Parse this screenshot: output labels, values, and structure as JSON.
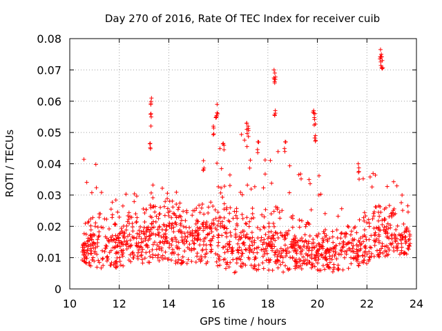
{
  "chart_data": {
    "type": "scatter",
    "title": "Day 270 of 2016, Rate Of TEC Index for receiver cuib",
    "xlabel": "GPS time / hours",
    "ylabel": "ROTI / TECUs",
    "xlim": [
      10,
      24
    ],
    "ylim": [
      0,
      0.08
    ],
    "grid": true,
    "marker": "+",
    "color": "#ff0000",
    "x_ticks": [
      "10",
      "12",
      "14",
      "16",
      "18",
      "20",
      "22",
      "24"
    ],
    "y_ticks": [
      "0",
      "0.01",
      "0.02",
      "0.03",
      "0.04",
      "0.05",
      "0.06",
      "0.07",
      "0.08"
    ],
    "envelope": [
      {
        "x": 10.5,
        "low": 0.008,
        "mid": 0.014,
        "high": 0.043
      },
      {
        "x": 11.0,
        "low": 0.007,
        "mid": 0.016,
        "high": 0.042
      },
      {
        "x": 11.5,
        "low": 0.006,
        "mid": 0.015,
        "high": 0.027
      },
      {
        "x": 12.0,
        "low": 0.007,
        "mid": 0.016,
        "high": 0.031
      },
      {
        "x": 12.5,
        "low": 0.008,
        "mid": 0.016,
        "high": 0.032
      },
      {
        "x": 13.0,
        "low": 0.008,
        "mid": 0.017,
        "high": 0.032
      },
      {
        "x": 13.5,
        "low": 0.009,
        "mid": 0.018,
        "high": 0.036
      },
      {
        "x": 14.0,
        "low": 0.008,
        "mid": 0.019,
        "high": 0.031
      },
      {
        "x": 14.5,
        "low": 0.008,
        "mid": 0.017,
        "high": 0.032
      },
      {
        "x": 15.0,
        "low": 0.008,
        "mid": 0.017,
        "high": 0.033
      },
      {
        "x": 15.5,
        "low": 0.007,
        "mid": 0.018,
        "high": 0.041
      },
      {
        "x": 16.0,
        "low": 0.007,
        "mid": 0.02,
        "high": 0.049
      },
      {
        "x": 16.5,
        "low": 0.004,
        "mid": 0.016,
        "high": 0.04
      },
      {
        "x": 17.0,
        "low": 0.007,
        "mid": 0.016,
        "high": 0.053
      },
      {
        "x": 17.5,
        "low": 0.006,
        "mid": 0.015,
        "high": 0.037
      },
      {
        "x": 18.0,
        "low": 0.006,
        "mid": 0.016,
        "high": 0.045
      },
      {
        "x": 18.5,
        "low": 0.005,
        "mid": 0.016,
        "high": 0.046
      },
      {
        "x": 19.0,
        "low": 0.006,
        "mid": 0.015,
        "high": 0.042
      },
      {
        "x": 19.5,
        "low": 0.006,
        "mid": 0.014,
        "high": 0.045
      },
      {
        "x": 20.0,
        "low": 0.006,
        "mid": 0.013,
        "high": 0.04
      },
      {
        "x": 20.5,
        "low": 0.005,
        "mid": 0.012,
        "high": 0.025
      },
      {
        "x": 21.0,
        "low": 0.006,
        "mid": 0.013,
        "high": 0.026
      },
      {
        "x": 21.5,
        "low": 0.007,
        "mid": 0.014,
        "high": 0.04
      },
      {
        "x": 22.0,
        "low": 0.008,
        "mid": 0.016,
        "high": 0.04
      },
      {
        "x": 22.5,
        "low": 0.01,
        "mid": 0.019,
        "high": 0.037
      },
      {
        "x": 23.0,
        "low": 0.011,
        "mid": 0.019,
        "high": 0.035
      },
      {
        "x": 23.5,
        "low": 0.011,
        "mid": 0.016,
        "high": 0.031
      },
      {
        "x": 23.75,
        "low": 0.011,
        "mid": 0.015,
        "high": 0.03
      }
    ],
    "peaks": [
      {
        "x": 13.3,
        "y": 0.061
      },
      {
        "x": 13.28,
        "y": 0.056
      },
      {
        "x": 13.25,
        "y": 0.0465
      },
      {
        "x": 15.4,
        "y": 0.041
      },
      {
        "x": 15.8,
        "y": 0.052
      },
      {
        "x": 15.95,
        "y": 0.059
      },
      {
        "x": 15.92,
        "y": 0.055
      },
      {
        "x": 16.2,
        "y": 0.0465
      },
      {
        "x": 17.15,
        "y": 0.053
      },
      {
        "x": 17.2,
        "y": 0.052
      },
      {
        "x": 17.6,
        "y": 0.047
      },
      {
        "x": 18.25,
        "y": 0.07
      },
      {
        "x": 18.28,
        "y": 0.069
      },
      {
        "x": 18.3,
        "y": 0.057
      },
      {
        "x": 18.7,
        "y": 0.047
      },
      {
        "x": 19.85,
        "y": 0.057
      },
      {
        "x": 19.9,
        "y": 0.056
      },
      {
        "x": 19.92,
        "y": 0.049
      },
      {
        "x": 21.65,
        "y": 0.04
      },
      {
        "x": 22.55,
        "y": 0.0765
      },
      {
        "x": 22.58,
        "y": 0.075
      },
      {
        "x": 22.62,
        "y": 0.073
      }
    ],
    "n_points": 1400
  }
}
